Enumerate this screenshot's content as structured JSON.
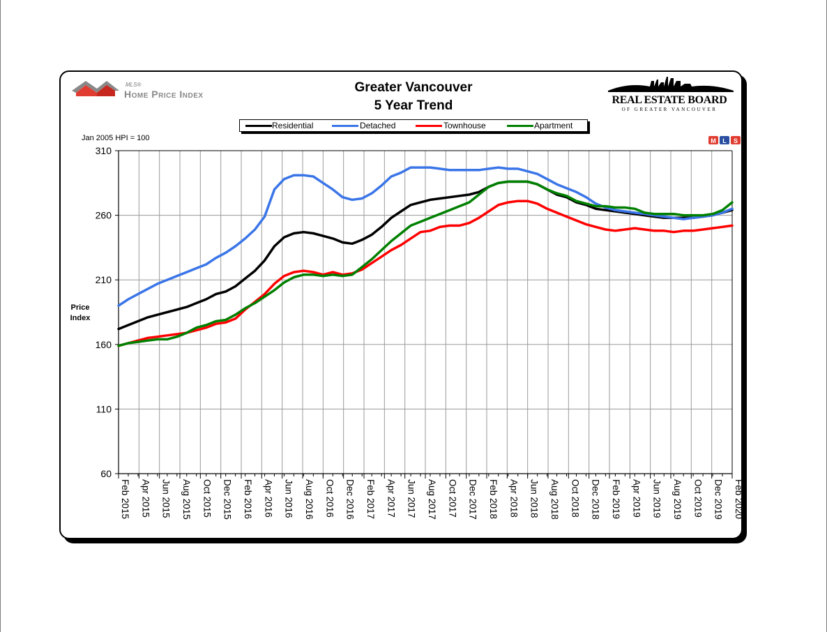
{
  "header": {
    "logo_small": "MLS®",
    "logo_main": "Home Price Index",
    "title_line1": "Greater Vancouver",
    "title_line2": "5 Year Trend",
    "board_name": "REAL ESTATE BOARD",
    "board_sub": "OF GREATER VANCOUVER",
    "hpi_note": "Jan 2005 HPI = 100",
    "badge_letters": "MLS"
  },
  "chart_data": {
    "type": "line",
    "title": "Greater Vancouver 5 Year Trend",
    "ylabel_line1": "Price",
    "ylabel_line2": "Index",
    "ylim": [
      60,
      310
    ],
    "yticks": [
      60,
      110,
      160,
      210,
      260,
      310
    ],
    "grid": true,
    "legend_position": "top",
    "x_tick_labels": [
      "Feb 2015",
      "Apr 2015",
      "Jun 2015",
      "Aug 2015",
      "Oct 2015",
      "Dec 2015",
      "Feb 2016",
      "Apr 2016",
      "Jun 2016",
      "Aug 2016",
      "Oct 2016",
      "Dec 2016",
      "Feb 2017",
      "Apr 2017",
      "Jun 2017",
      "Aug 2017",
      "Oct 2017",
      "Dec 2017",
      "Feb 2018",
      "Apr 2018",
      "Jun 2018",
      "Aug 2018",
      "Oct 2018",
      "Dec 2018",
      "Feb 2019",
      "Apr 2019",
      "Jun 2019",
      "Aug 2019",
      "Oct 2019",
      "Dec 2019",
      "Feb 2020"
    ],
    "series": [
      {
        "name": "Residential",
        "color": "#000000",
        "values": [
          172,
          175,
          178,
          181,
          183,
          185,
          187,
          189,
          192,
          195,
          199,
          201,
          205,
          211,
          217,
          225,
          236,
          243,
          246,
          247,
          246,
          244,
          242,
          239,
          238,
          241,
          245,
          251,
          258,
          263,
          268,
          270,
          272,
          273,
          274,
          275,
          276,
          278,
          282,
          285,
          286,
          286,
          286,
          284,
          280,
          276,
          274,
          270,
          268,
          265,
          264,
          263,
          262,
          261,
          260,
          259,
          258,
          258,
          258,
          258,
          259,
          260,
          262,
          264
        ],
        "legend_label": "Residential"
      },
      {
        "name": "Detached",
        "color": "#3a75e8",
        "values": [
          190,
          195,
          199,
          203,
          207,
          210,
          213,
          216,
          219,
          222,
          227,
          231,
          236,
          242,
          249,
          259,
          280,
          288,
          291,
          291,
          290,
          285,
          280,
          274,
          272,
          273,
          277,
          283,
          290,
          293,
          297,
          297,
          297,
          296,
          295,
          295,
          295,
          295,
          296,
          297,
          296,
          296,
          294,
          292,
          288,
          284,
          281,
          278,
          274,
          269,
          266,
          264,
          263,
          262,
          261,
          260,
          259,
          258,
          257,
          258,
          259,
          260,
          262,
          265
        ],
        "legend_label": "Detached"
      },
      {
        "name": "Townhouse",
        "color": "#ff0000",
        "values": [
          159,
          161,
          163,
          165,
          166,
          167,
          168,
          169,
          171,
          173,
          176,
          177,
          180,
          187,
          193,
          199,
          207,
          213,
          216,
          217,
          216,
          214,
          216,
          214,
          215,
          218,
          223,
          228,
          233,
          237,
          242,
          247,
          248,
          251,
          252,
          252,
          254,
          258,
          263,
          268,
          270,
          271,
          271,
          269,
          265,
          262,
          259,
          256,
          253,
          251,
          249,
          248,
          249,
          250,
          249,
          248,
          248,
          247,
          248,
          248,
          249,
          250,
          251,
          252
        ],
        "legend_label": "Townhouse"
      },
      {
        "name": "Apartment",
        "color": "#008000",
        "values": [
          159,
          161,
          162,
          163,
          164,
          164,
          166,
          169,
          173,
          175,
          178,
          179,
          183,
          188,
          192,
          197,
          202,
          208,
          212,
          214,
          214,
          213,
          214,
          213,
          214,
          220,
          226,
          233,
          240,
          246,
          252,
          255,
          258,
          261,
          264,
          267,
          270,
          276,
          282,
          285,
          286,
          286,
          286,
          284,
          280,
          277,
          275,
          271,
          269,
          267,
          267,
          266,
          266,
          265,
          262,
          261,
          261,
          261,
          260,
          260,
          260,
          261,
          264,
          270
        ],
        "legend_label": "Apartment"
      }
    ]
  }
}
